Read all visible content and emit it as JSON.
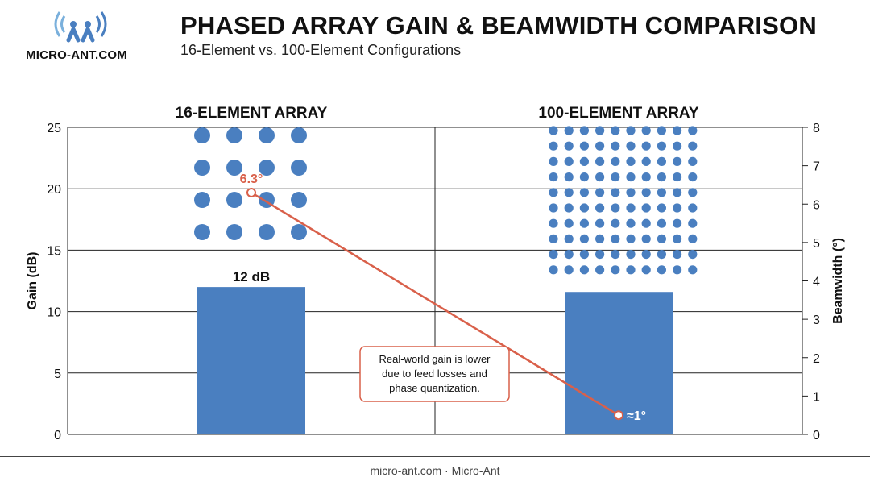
{
  "brand": {
    "name": "MICRO-ANT.COM",
    "accent_color": "#4a7fc0",
    "logo_icon": "antenna-people-icon"
  },
  "header": {
    "title": "PHASED ARRAY GAIN & BEAMWIDTH COMPARISON",
    "subtitle": "16-Element vs. 100-Element Configurations"
  },
  "footer": {
    "text": "micro-ant.com · Micro-Ant"
  },
  "chart_data": {
    "type": "bar",
    "categories": [
      "16-ELEMENT ARRAY",
      "100-ELEMENT ARRAY"
    ],
    "series": [
      {
        "name": "Gain",
        "axis": "left",
        "values": [
          12,
          11.6
        ],
        "color": "#4a7fc0",
        "data_labels": [
          "12 dB",
          ""
        ]
      },
      {
        "name": "Beamwidth",
        "axis": "right",
        "type": "line",
        "values": [
          6.3,
          0.5
        ],
        "color": "#d9604a",
        "data_labels": [
          "6.3°",
          "≈1°"
        ]
      }
    ],
    "ylabel": "Gain (dB)",
    "ylim": [
      0,
      25
    ],
    "yticks": [
      0,
      5,
      10,
      15,
      20,
      25
    ],
    "y2label": "Beamwidth (°)",
    "y2lim": [
      0,
      8
    ],
    "y2ticks": [
      0,
      1,
      2,
      3,
      4,
      5,
      6,
      7,
      8
    ],
    "grid": true,
    "arrays": [
      {
        "rows": 4,
        "cols": 4
      },
      {
        "rows": 10,
        "cols": 10
      }
    ],
    "annotation": {
      "lines": [
        "Real-world gain is lower",
        "due to feed losses and",
        "phase quantization."
      ]
    }
  }
}
